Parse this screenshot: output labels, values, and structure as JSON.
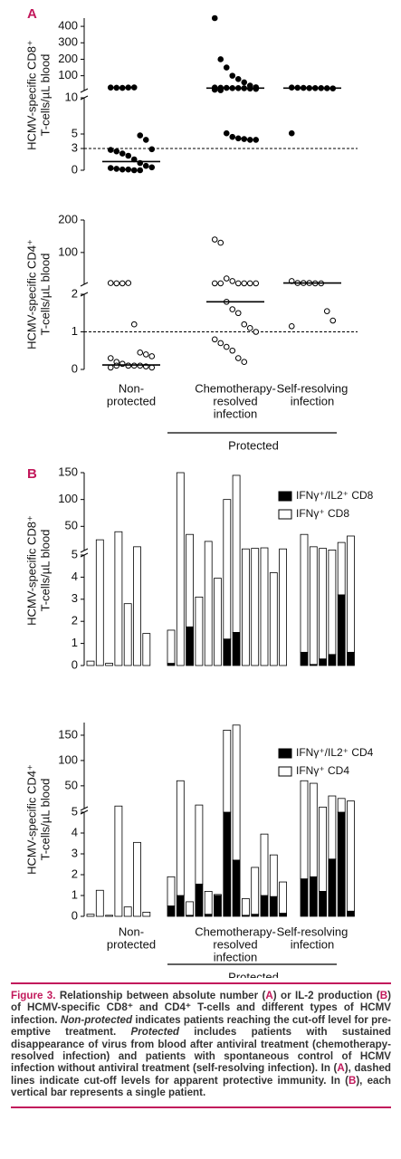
{
  "panel_labels": [
    "A",
    "B"
  ],
  "chart_data": [
    {
      "type": "scatter",
      "filled": true,
      "color": "#000000",
      "ylabel": [
        "HCMV-specific CD8⁺",
        "T-cells/µL blood"
      ],
      "y_segments": [
        {
          "ylim": [
            0,
            10
          ],
          "yticks": [
            0,
            3,
            5,
            10
          ]
        },
        {
          "ylim": [
            10,
            450
          ],
          "yticks": [
            100,
            200,
            300,
            400
          ]
        }
      ],
      "cutoff": 3,
      "points": [
        [
          28,
          27,
          26,
          28,
          29,
          4.8,
          4.2,
          2.9,
          2.8,
          2.6,
          2.3,
          2.0,
          1.5,
          1.0,
          0.6,
          0.4,
          0.3,
          0.2,
          0.1,
          0.1,
          0,
          0
        ],
        [
          450,
          200,
          150,
          100,
          80,
          60,
          40,
          30,
          28,
          27,
          26,
          25,
          25,
          24,
          22,
          20,
          15,
          12,
          5.1,
          4.6,
          4.4,
          4.3,
          4.2,
          4.2
        ],
        [
          28,
          27,
          26,
          25,
          25,
          25,
          24,
          23,
          5.1
        ]
      ],
      "medians": [
        1.2,
        25,
        25
      ]
    },
    {
      "type": "scatter",
      "filled": false,
      "color": "#000000",
      "ylabel": [
        "HCMV-specific CD4⁺",
        "T-cells/µL blood"
      ],
      "y_segments": [
        {
          "ylim": [
            0,
            2
          ],
          "yticks": [
            0,
            1,
            2
          ]
        },
        {
          "ylim": [
            2,
            200
          ],
          "yticks": [
            100,
            200
          ]
        }
      ],
      "cutoff": 1,
      "categories": [
        [
          "Non-",
          "protected"
        ],
        [
          "Chemotherapy-",
          "resolved",
          "infection"
        ],
        [
          "Self-resolving",
          "infection"
        ]
      ],
      "group_label": "Protected",
      "points": [
        [
          6,
          5,
          5,
          6,
          1.2,
          0.45,
          0.4,
          0.35,
          0.3,
          0.2,
          0.15,
          0.1,
          0.1,
          0.1,
          0.08,
          0.05,
          0.05,
          0.1,
          0.15,
          0.1
        ],
        [
          140,
          130,
          20,
          12,
          5,
          5,
          5,
          5,
          5,
          5,
          1.8,
          1.6,
          1.5,
          1.2,
          1.1,
          1.0,
          0.8,
          0.7,
          0.6,
          0.5,
          0.3,
          0.2
        ],
        [
          12,
          6,
          6,
          6,
          5,
          5,
          1.55,
          1.3,
          1.15
        ]
      ],
      "medians": [
        0.12,
        1.8,
        6
      ]
    },
    {
      "type": "bar",
      "ylabel": [
        "HCMV-specific CD8⁺",
        "T-cells/µL blood"
      ],
      "y_segments": [
        {
          "ylim": [
            0,
            5
          ],
          "yticks": [
            0,
            1,
            2,
            3,
            4,
            5
          ]
        },
        {
          "ylim": [
            5,
            150
          ],
          "yticks": [
            50,
            100,
            150
          ]
        }
      ],
      "series": [
        {
          "name": "IFNγ⁺/IL2⁺ CD8",
          "color": "#000000",
          "values": [
            [
              0,
              0,
              0,
              0,
              0,
              0,
              0
            ],
            [
              0.1,
              0,
              1.75,
              0,
              0,
              0,
              1.2,
              1.5,
              0,
              0,
              0,
              0,
              0
            ],
            [
              0.6,
              0.05,
              0.3,
              0.5,
              3.2,
              0.6
            ]
          ]
        },
        {
          "name": "IFNγ⁺ CD8",
          "color": "#ffffff",
          "values": [
            [
              0.2,
              25,
              0.1,
              40,
              2.8,
              12,
              1.45
            ],
            [
              1.5,
              150,
              33.25,
              3.1,
              22,
              3.95,
              98.8,
              143.5,
              8,
              9,
              10,
              4.2,
              8
            ],
            [
              34.4,
              11.95,
              8.7,
              5.5,
              16.8,
              31.4
            ]
          ]
        }
      ]
    },
    {
      "type": "bar",
      "ylabel": [
        "HCMV-specific CD4⁺",
        "T-cells/µL blood"
      ],
      "y_segments": [
        {
          "ylim": [
            0,
            5
          ],
          "yticks": [
            0,
            1,
            2,
            3,
            4,
            5
          ]
        },
        {
          "ylim": [
            5,
            175
          ],
          "yticks": [
            50,
            100,
            150
          ]
        }
      ],
      "categories": [
        [
          "Non-",
          "protected"
        ],
        [
          "Chemotherapy-",
          "resolved",
          "infection"
        ],
        [
          "Self-resolving",
          "infection"
        ]
      ],
      "group_label": "Protected",
      "series": [
        {
          "name": "IFNγ⁺/IL2⁺ CD4",
          "color": "#000000",
          "values": [
            [
              0,
              0,
              0,
              0,
              0,
              0,
              0
            ],
            [
              0.5,
              1.0,
              0.05,
              1.55,
              0.1,
              1.0,
              5,
              2.7,
              0.05,
              0.1,
              1.0,
              0.95,
              0.15
            ],
            [
              1.8,
              1.9,
              1.2,
              2.75,
              5,
              0.25
            ]
          ]
        },
        {
          "name": "IFNγ⁺ CD4",
          "color": "#ffffff",
          "values": [
            [
              0.1,
              1.25,
              0.05,
              10,
              0.45,
              3.55,
              0.2
            ],
            [
              1.4,
              59,
              0.65,
              10.45,
              1.1,
              0.05,
              155,
              167.3,
              0.8,
              2.25,
              2.95,
              2.0,
              1.5
            ],
            [
              58.2,
              53.1,
              6.8,
              27.25,
              20,
              19.75
            ]
          ]
        }
      ]
    }
  ],
  "caption": [
    "Figure 3.",
    " Relationship between absolute number (",
    "A",
    ") or IL-2 production (",
    "B",
    ") of HCMV-specific CD8⁺ and CD4⁺ T-cells and different types of HCMV infection. ",
    "Non-protected",
    " indicates patients reaching the cut-off level for pre-emptive treatment. ",
    "Protected",
    " includes patients with sustained disappearance of virus from blood after antiviral treatment (chemotherapy-resolved infection) and patients with spontaneous control of HCMV infection without antiviral treatment (self-resolving infection). In (",
    "A",
    "), dashed lines indicate cut-off levels for apparent protective immunity. In (",
    "B",
    "), each vertical bar represents a single patient."
  ]
}
